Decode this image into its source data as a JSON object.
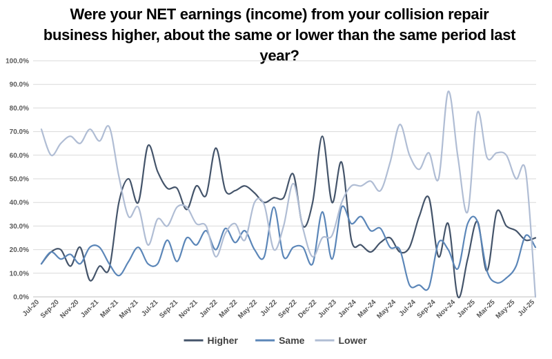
{
  "chart_data": {
    "type": "line",
    "title": "Were your NET earnings (income) from your collision repair business higher, about the same or lower than the same period last year?",
    "xlabel": "",
    "ylabel": "",
    "ylim": [
      0,
      100
    ],
    "y_ticks": [
      "0.0%",
      "10.0%",
      "20.0%",
      "30.0%",
      "40.0%",
      "50.0%",
      "60.0%",
      "70.0%",
      "80.0%",
      "90.0%",
      "100.0%"
    ],
    "x_tick_labels": [
      "Jul-20",
      "Sep-20",
      "Nov-20",
      "Jan-21",
      "Mar-21",
      "May-21",
      "Jul-21",
      "Sep-21",
      "Nov-21",
      "Jan-22",
      "Mar-22",
      "May-22",
      "Jul-22",
      "Sep-22",
      "Dec-22",
      "Jun-23",
      "Jan-24",
      "Mar-24",
      "May-24",
      "Jul-24",
      "Sep-24",
      "Nov-24",
      "Jan-25",
      "Mar-25",
      "May-25",
      "Jul-25"
    ],
    "grid": "horizontal",
    "legend": "bottom",
    "smooth": true,
    "series": [
      {
        "name": "Higher",
        "color": "#44546a",
        "values": [
          14,
          19,
          20,
          13,
          21,
          7,
          13,
          12,
          40,
          50,
          40,
          64,
          53,
          46,
          46,
          37,
          47,
          43,
          63,
          45,
          45,
          47,
          44,
          40,
          42,
          42,
          52,
          30,
          40,
          68,
          40,
          57,
          24,
          22,
          19,
          23,
          25,
          19,
          21,
          34,
          42,
          17,
          31,
          0,
          16,
          32,
          11,
          36,
          30,
          28,
          24,
          25
        ]
      },
      {
        "name": "Same",
        "color": "#5b86b8",
        "values": [
          14,
          19,
          16,
          18,
          14,
          21,
          21,
          14,
          9,
          15,
          21,
          14,
          14,
          24,
          15,
          25,
          22,
          28,
          20,
          29,
          23,
          28,
          20,
          17,
          38,
          17,
          21,
          21,
          14,
          36,
          16,
          38,
          31,
          34,
          28,
          29,
          21,
          20,
          5,
          5,
          4,
          23,
          20,
          12,
          31,
          32,
          11,
          6,
          8,
          13,
          26,
          21
        ]
      },
      {
        "name": "Lower",
        "color": "#b0bdd4",
        "values": [
          71,
          60,
          65,
          68,
          65,
          71,
          66,
          72,
          51,
          34,
          38,
          22,
          33,
          30,
          38,
          38,
          31,
          30,
          17,
          27,
          31,
          24,
          40,
          39,
          20,
          30,
          48,
          29,
          17,
          25,
          26,
          40,
          47,
          47,
          49,
          45,
          57,
          73,
          60,
          54,
          61,
          50,
          87,
          59,
          36,
          78,
          59,
          61,
          60,
          50,
          53,
          0
        ]
      }
    ]
  }
}
